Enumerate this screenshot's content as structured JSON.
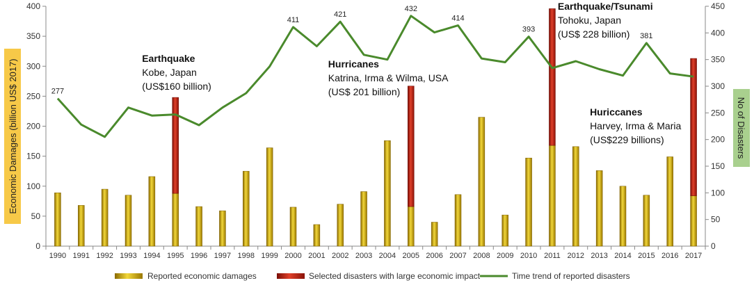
{
  "chart_data": {
    "type": "bar",
    "categories": [
      "1990",
      "1991",
      "1992",
      "1993",
      "1994",
      "1995",
      "1996",
      "1997",
      "1998",
      "1999",
      "2000",
      "2001",
      "2002",
      "2003",
      "2004",
      "2005",
      "2006",
      "2007",
      "2008",
      "2009",
      "2010",
      "2011",
      "2012",
      "2013",
      "2014",
      "2015",
      "2016",
      "2017"
    ],
    "series": [
      {
        "name": "Reported economic damages",
        "kind": "bar",
        "axis": "left",
        "values": [
          89,
          68,
          95,
          85,
          116,
          88,
          66,
          59,
          125,
          164,
          65,
          36,
          70,
          91,
          176,
          66,
          40,
          86,
          215,
          52,
          147,
          168,
          166,
          126,
          100,
          85,
          149,
          84
        ]
      },
      {
        "name": "Selected disasters with large economic impact",
        "kind": "bar-stacked",
        "axis": "left",
        "values": [
          0,
          0,
          0,
          0,
          0,
          160,
          0,
          0,
          0,
          0,
          0,
          0,
          0,
          0,
          0,
          201,
          0,
          0,
          0,
          0,
          0,
          228,
          0,
          0,
          0,
          0,
          0,
          229
        ]
      },
      {
        "name": "Time trend of reported disasters",
        "kind": "line",
        "axis": "right",
        "values": [
          277,
          228,
          205,
          260,
          245,
          247,
          227,
          260,
          287,
          337,
          411,
          375,
          421,
          359,
          350,
          432,
          401,
          414,
          352,
          345,
          393,
          334,
          347,
          332,
          320,
          381,
          324,
          318
        ]
      }
    ],
    "point_labels": [
      {
        "index": 0,
        "text": "277"
      },
      {
        "index": 10,
        "text": "411"
      },
      {
        "index": 12,
        "text": "421"
      },
      {
        "index": 15,
        "text": "432"
      },
      {
        "index": 17,
        "text": "414"
      },
      {
        "index": 20,
        "text": "393"
      },
      {
        "index": 25,
        "text": "381"
      }
    ],
    "annotations": [
      {
        "index": 5,
        "title": "Earthquake",
        "line1": "Kobe, Japan",
        "line2": " (US$160 billion)"
      },
      {
        "index": 15,
        "title": "Hurricanes",
        "line1": "Katrina, Irma & Wilma, USA",
        "line2": "(US$ 201 billion)"
      },
      {
        "index": 21,
        "title": "Earthquake/Tsunami",
        "line1": "Tohoku, Japan",
        "line2": "(US$ 228 billion)"
      },
      {
        "index": 27,
        "title": "Huriccanes",
        "line1": "Harvey, Irma & Maria",
        "line2": " (US$229 billions)"
      }
    ],
    "ylabel": "Economic Damages (billion US$ 2017)",
    "y2label": "No of Disasters",
    "ylim": [
      0,
      400
    ],
    "y2lim": [
      0,
      450
    ],
    "yticks": [
      "0",
      "50",
      "100",
      "150",
      "200",
      "250",
      "300",
      "350",
      "400"
    ],
    "y2ticks": [
      "0",
      "50",
      "100",
      "150",
      "200",
      "250",
      "300",
      "350",
      "400",
      "450"
    ],
    "grid": false,
    "legend_position": "bottom",
    "colors": {
      "bar": "#c8a200",
      "bar_highlight": "#f2d73a",
      "selected": "#b01a10",
      "selected_highlight": "#e0402a",
      "line": "#4a8a2c",
      "ylabel_bg": "#f7c948",
      "y2label_bg": "#a9d08e",
      "axis": "#888888",
      "text": "#333333"
    }
  }
}
